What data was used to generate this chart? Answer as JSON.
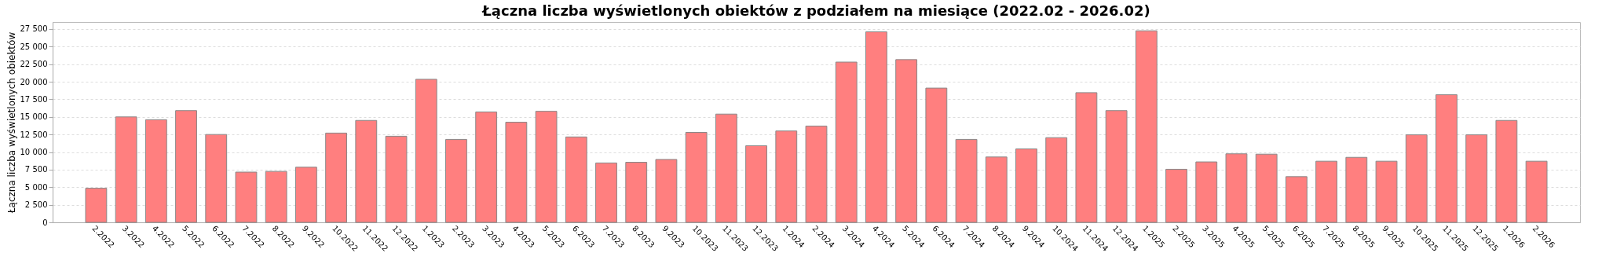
{
  "chart_data": {
    "type": "bar",
    "title": "Łączna liczba wyświetlonych obiektów z podziałem na miesiące (2022.02 - 2026.02)",
    "ylabel": "Łączna liczba wyświetlonych obiektów",
    "categories": [
      "2.2022",
      "3.2022",
      "4.2022",
      "5.2022",
      "6.2022",
      "7.2022",
      "8.2022",
      "9.2022",
      "10.2022",
      "11.2022",
      "12.2022",
      "1.2023",
      "2.2023",
      "3.2023",
      "4.2023",
      "5.2023",
      "6.2023",
      "7.2023",
      "8.2023",
      "9.2023",
      "10.2023",
      "11.2023",
      "12.2023",
      "1.2024",
      "2.2024",
      "3.2024",
      "4.2024",
      "5.2024",
      "6.2024",
      "7.2024",
      "8.2024",
      "9.2024",
      "10.2024",
      "11.2024",
      "12.2024",
      "1.2025",
      "2.2025",
      "3.2025",
      "4.2025",
      "5.2025",
      "6.2025",
      "7.2025",
      "8.2025",
      "9.2025",
      "10.2025",
      "11.2025",
      "12.2025",
      "1.2026",
      "2.2026"
    ],
    "values": [
      4850,
      15000,
      14600,
      15900,
      12500,
      7150,
      7250,
      7850,
      12700,
      14500,
      12250,
      20350,
      11800,
      15700,
      14250,
      15800,
      12150,
      8450,
      8550,
      8950,
      12800,
      15400,
      10900,
      13000,
      13700,
      22800,
      27100,
      23150,
      19100,
      11800,
      9300,
      10450,
      12050,
      18450,
      15900,
      27250,
      7550,
      8600,
      9750,
      9700,
      6500,
      8700,
      9250,
      8700,
      12450,
      18150,
      12450,
      14500,
      8700
    ],
    "color": "#ff7f7f",
    "ylim": [
      0,
      28500
    ],
    "yticks": [
      0,
      {
        "value": 2500,
        "label": "2 500"
      },
      {
        "value": 5000,
        "label": "5 000"
      },
      {
        "value": 7500,
        "label": "7 500"
      },
      {
        "value": 10000,
        "label": "10 000"
      },
      {
        "value": 12500,
        "label": "12 500"
      },
      {
        "value": 15000,
        "label": "15 000"
      },
      {
        "value": 17500,
        "label": "17 500"
      },
      {
        "value": 20000,
        "label": "20 000"
      },
      {
        "value": 22500,
        "label": "22 500"
      },
      {
        "value": 25000,
        "label": "25 000"
      },
      {
        "value": 27500,
        "label": "27 500"
      }
    ],
    "grid": "y"
  }
}
